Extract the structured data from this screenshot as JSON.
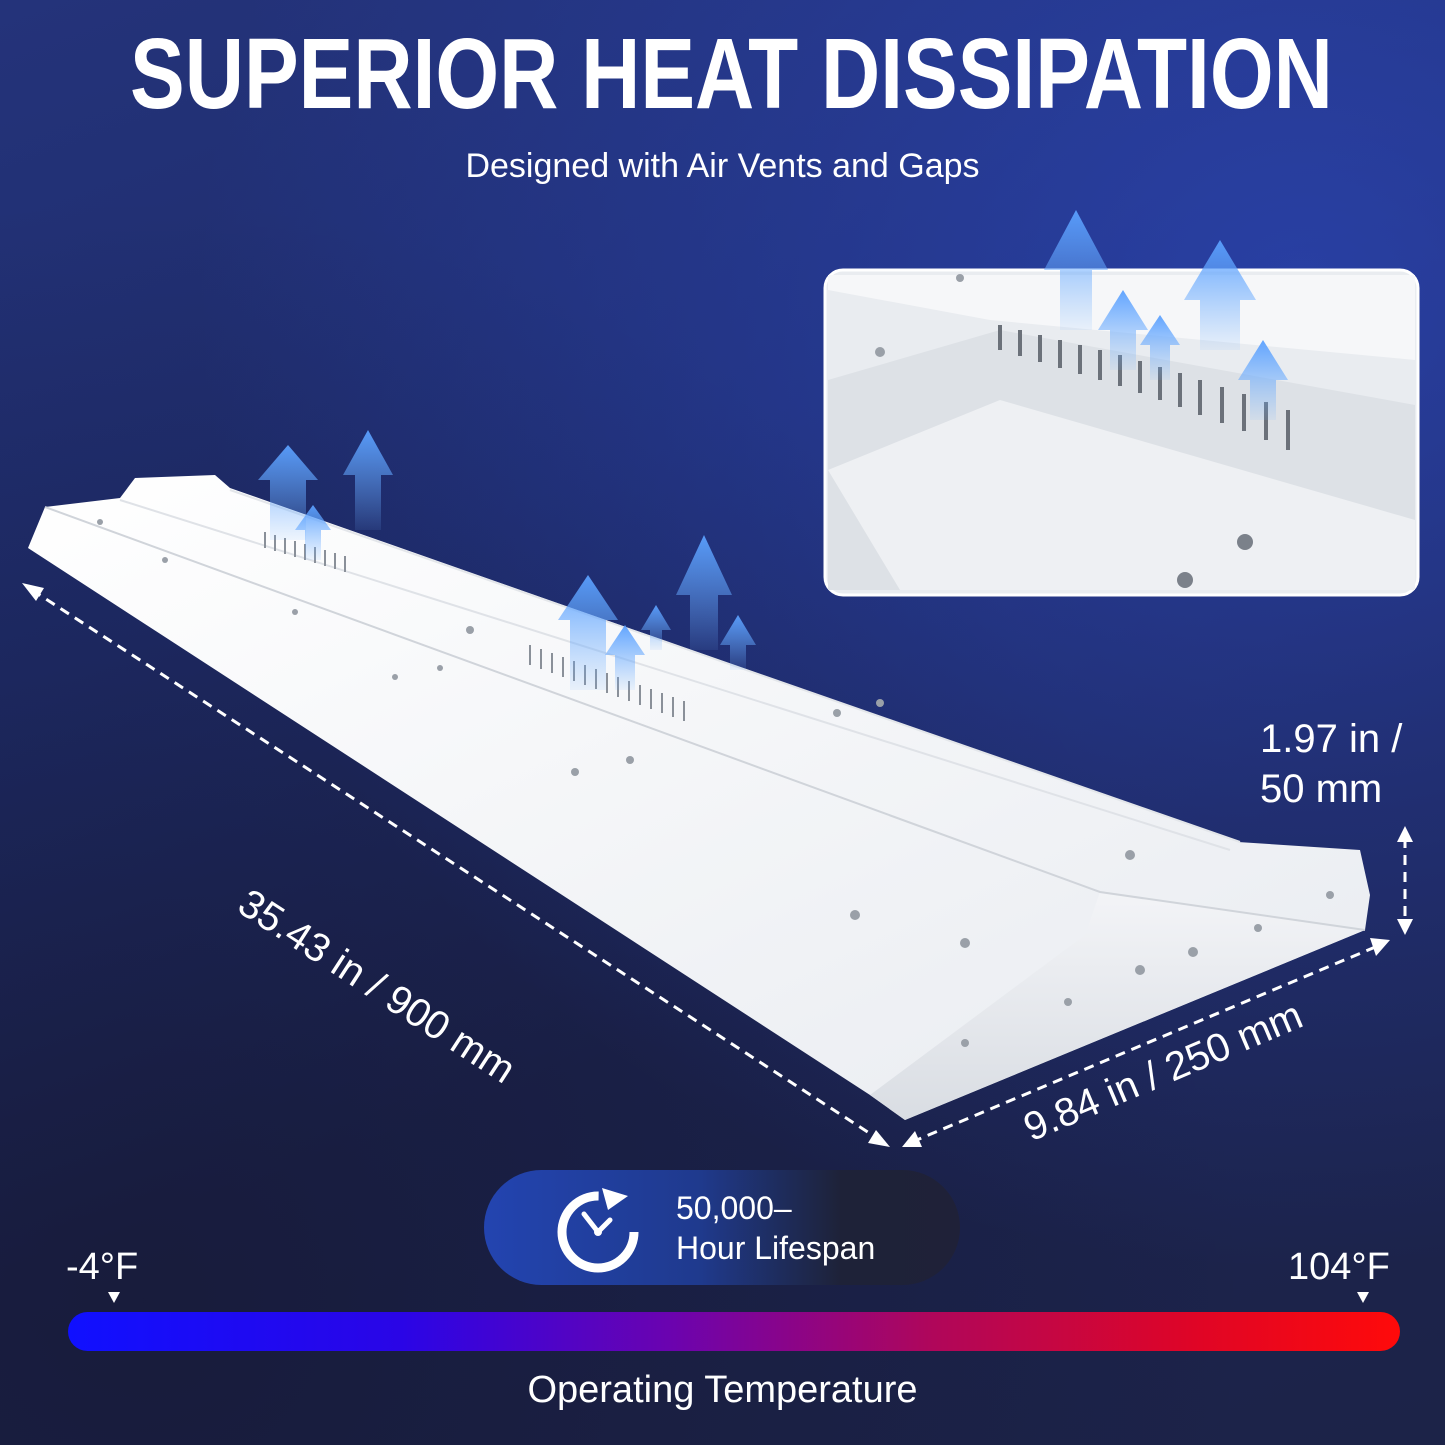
{
  "header": {
    "title": "SUPERIOR HEAT DISSIPATION",
    "subtitle": "Designed with Air Vents and Gaps"
  },
  "dimensions": {
    "length": "35.43 in / 900 mm",
    "width": "9.84 in / 250 mm",
    "height_line1": "1.97 in /",
    "height_line2": "50 mm"
  },
  "lifespan": {
    "line1": "50,000–",
    "line2": "Hour Lifespan",
    "icon": "clock-refresh-icon"
  },
  "temperature": {
    "min": "-4°F",
    "max": "104°F",
    "label": "Operating Temperature",
    "gradient_colors": [
      "#1010ff",
      "#6a03b0",
      "#ff0a0a"
    ]
  },
  "colors": {
    "background": "#1e2c6c",
    "accent": "#2344b0",
    "airflow": "#6fb0ff"
  }
}
